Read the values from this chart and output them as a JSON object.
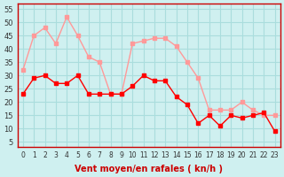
{
  "hours": [
    0,
    1,
    2,
    3,
    4,
    5,
    6,
    7,
    8,
    9,
    10,
    11,
    12,
    13,
    14,
    15,
    16,
    17,
    18,
    19,
    20,
    21,
    22,
    23
  ],
  "avg_wind": [
    23,
    29,
    30,
    27,
    27,
    30,
    23,
    23,
    23,
    23,
    26,
    30,
    28,
    28,
    22,
    19,
    12,
    15,
    11,
    15,
    14,
    15,
    16,
    9
  ],
  "gust_wind": [
    32,
    45,
    48,
    42,
    52,
    45,
    37,
    35,
    23,
    23,
    42,
    43,
    44,
    44,
    41,
    35,
    29,
    17,
    17,
    17,
    20,
    17,
    15,
    15
  ],
  "bg_color": "#cff0f0",
  "avg_color": "#ff0000",
  "gust_color": "#ff9999",
  "grid_color": "#aadddd",
  "xlabel": "Vent moyen/en rafales ( kn/h )",
  "xlabel_color": "#cc0000",
  "title_color": "#cc0000",
  "yticks": [
    5,
    10,
    15,
    20,
    25,
    30,
    35,
    40,
    45,
    50,
    55
  ],
  "ylim": [
    3,
    57
  ],
  "xlim": [
    -0.5,
    23.5
  ]
}
